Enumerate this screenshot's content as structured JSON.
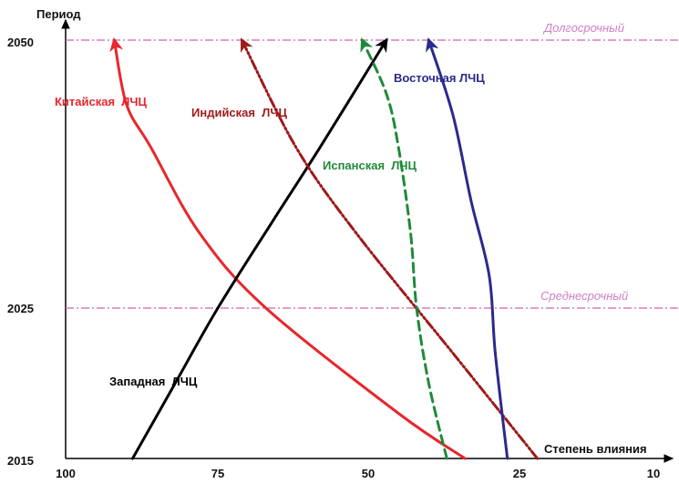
{
  "chart_data": {
    "type": "line",
    "xlabel": "Степень влияния",
    "ylabel": "Период",
    "x_ticks": [
      "100",
      "75",
      "50",
      "25",
      "10"
    ],
    "y_ticks": [
      "2015",
      "2025",
      "2050"
    ],
    "reference_lines": [
      {
        "label": "Долгосрочный",
        "y_tick": "2050",
        "color": "#cc66aa"
      },
      {
        "label": "Среднесрочный",
        "y_tick": "2025",
        "color": "#cc66aa"
      }
    ],
    "series": [
      {
        "name": "Китайская  ЛЧЦ",
        "color": "#e8262b",
        "style": "solid",
        "points": [
          [
            34,
            2015
          ],
          [
            45,
            2018
          ],
          [
            67,
            2025
          ],
          [
            78,
            2032
          ],
          [
            86,
            2040
          ],
          [
            90,
            2044
          ],
          [
            92,
            2050
          ]
        ]
      },
      {
        "name": "Западная  ЛЧЦ",
        "color": "#000000",
        "style": "solid",
        "points": [
          [
            89,
            2015
          ],
          [
            82,
            2020
          ],
          [
            75,
            2025
          ],
          [
            66,
            2033
          ],
          [
            58,
            2040
          ],
          [
            47,
            2050
          ]
        ]
      },
      {
        "name": "Индийская  ЛЧЦ",
        "color": "#9e1a1a",
        "style": "dash-dot",
        "points": [
          [
            23,
            2015
          ],
          [
            36,
            2022
          ],
          [
            52,
            2032
          ],
          [
            62,
            2040
          ],
          [
            71,
            2050
          ]
        ]
      },
      {
        "name": "Испанская  ЛЧЦ",
        "color": "#1f8a3a",
        "style": "dashed",
        "points": [
          [
            37,
            2015
          ],
          [
            40,
            2020
          ],
          [
            42,
            2025
          ],
          [
            43,
            2032
          ],
          [
            45,
            2040
          ],
          [
            47,
            2045
          ],
          [
            51,
            2050
          ]
        ]
      },
      {
        "name": "Восточная ЛЧЦ",
        "color": "#2a2a8c",
        "style": "solid",
        "points": [
          [
            27,
            2015
          ],
          [
            29,
            2022
          ],
          [
            30,
            2028
          ],
          [
            33,
            2035
          ],
          [
            36,
            2043
          ],
          [
            40,
            2050
          ]
        ]
      }
    ]
  }
}
